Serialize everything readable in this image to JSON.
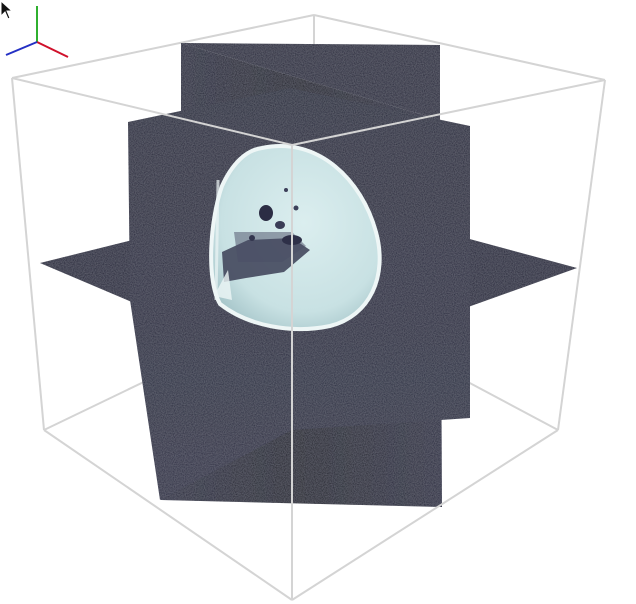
{
  "viewer": {
    "mode": "3d-orthogonal-slices",
    "background_color": "#ffffff",
    "bounding_box_color": "#d4d4d4",
    "slice_color": "#1c1d2e",
    "specimen_color": "#cfe6e8",
    "specimen_border_color": "#eef6f6",
    "icons": {
      "cursor": "mouse-pointer-icon",
      "orientation": "xyz-axes-icon"
    },
    "orientation_axes": {
      "x_color": "#d0112b",
      "y_color": "#2fb02f",
      "z_color": "#2430c4"
    }
  }
}
